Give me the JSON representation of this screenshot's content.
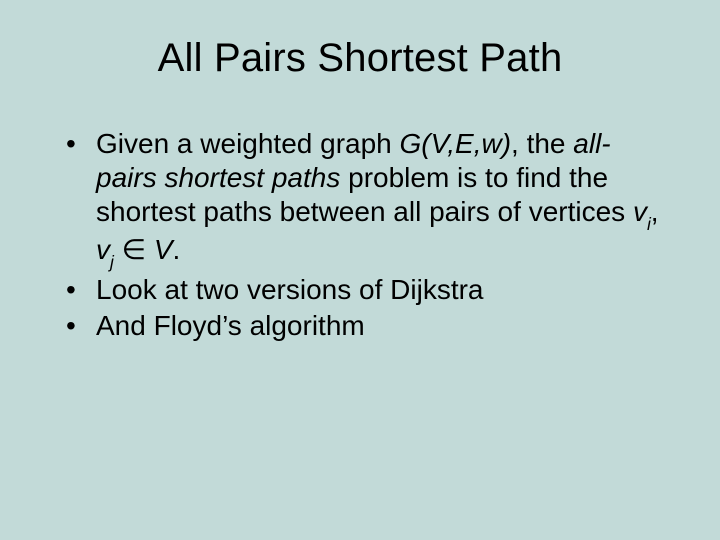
{
  "slide": {
    "background_color": "#c2dad8",
    "text_color": "#000000",
    "title": "All Pairs Shortest Path",
    "title_fontsize": 40,
    "body_fontsize": 28,
    "bullets": [
      {
        "runs": [
          {
            "t": "Given a weighted graph ",
            "style": "normal"
          },
          {
            "t": "G(V,E,w)",
            "style": "italic"
          },
          {
            "t": ", the ",
            "style": "normal"
          },
          {
            "t": "all-pairs shortest paths",
            "style": "italic"
          },
          {
            "t": " problem is to find the shortest paths between all pairs of vertices ",
            "style": "normal"
          },
          {
            "t": "v",
            "style": "italic"
          },
          {
            "t": "i",
            "style": "sub"
          },
          {
            "t": ", ",
            "style": "normal"
          },
          {
            "t": "v",
            "style": "italic"
          },
          {
            "t": "j",
            "style": "sub"
          },
          {
            "t": " ",
            "style": "normal"
          },
          {
            "t": "∈",
            "style": "elem"
          },
          {
            "t": " ",
            "style": "normal"
          },
          {
            "t": "V",
            "style": "italic"
          },
          {
            "t": ".",
            "style": "normal"
          }
        ]
      },
      {
        "runs": [
          {
            "t": "Look at two versions of Dijkstra",
            "style": "normal"
          }
        ]
      },
      {
        "runs": [
          {
            "t": "And Floyd’s algorithm",
            "style": "normal"
          }
        ]
      }
    ]
  }
}
